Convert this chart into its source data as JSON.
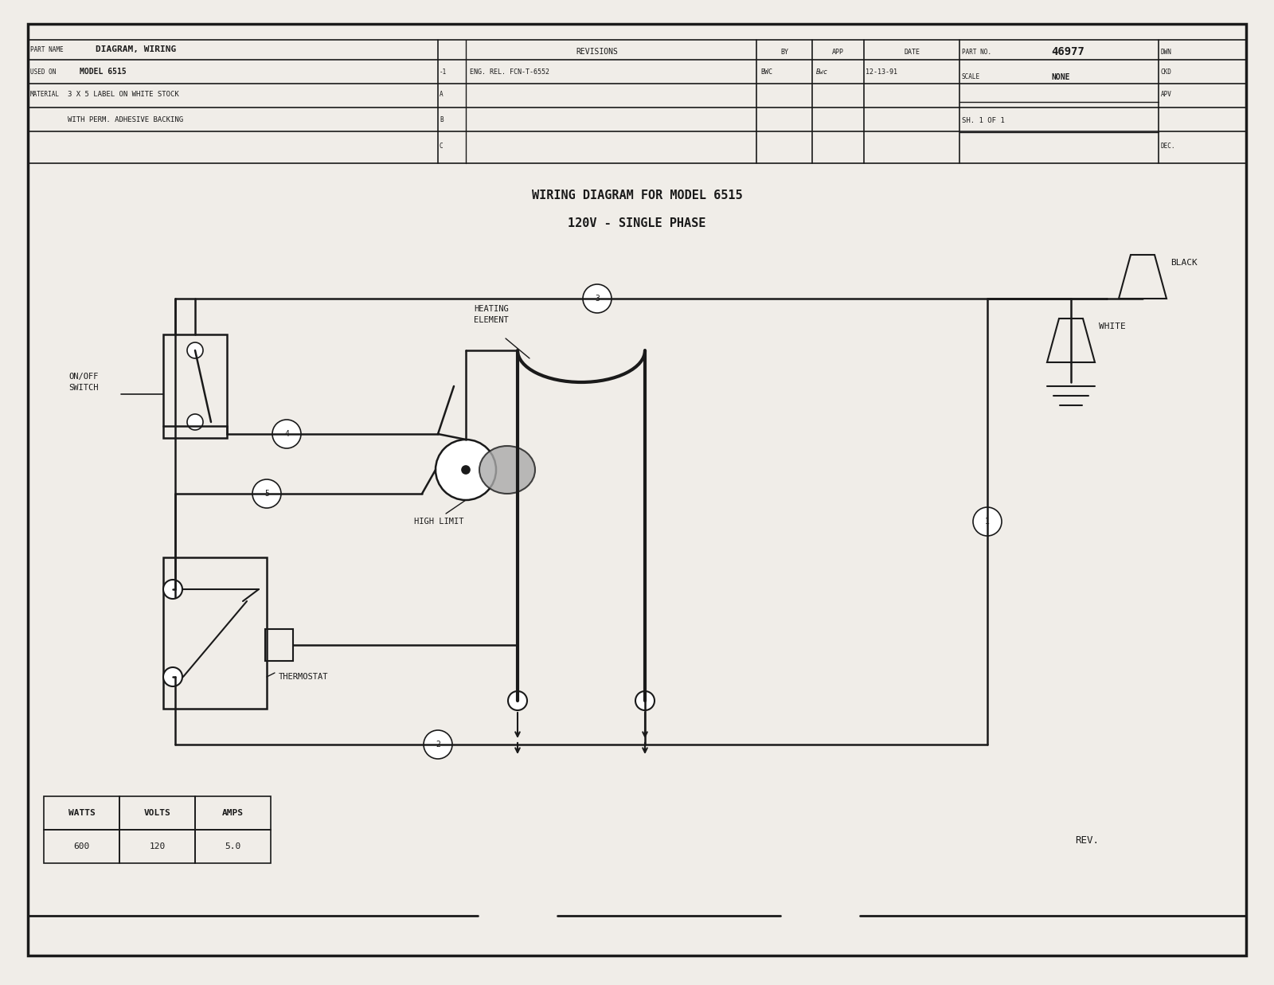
{
  "bg_color": "#f0ede8",
  "line_color": "#1a1a1a",
  "title_line1": "WIRING DIAGRAM FOR MODEL 6515",
  "title_line2": "120V - SINGLE PHASE",
  "header": {
    "part_name_label": "PART NAME",
    "part_name_value": "DIAGRAM, WIRING",
    "used_on_label": "USED ON",
    "used_on_value": "MODEL 6515",
    "material_label": "MATERIAL",
    "material_line1": "3 X 5 LABEL ON WHITE STOCK",
    "material_line2": "WITH PERM. ADHESIVE BACKING",
    "revisions_label": "REVISIONS",
    "rev_rows": [
      "-1",
      "A",
      "B",
      "C"
    ],
    "rev_desc": [
      "ENG. REL. FCN-T-6552",
      "",
      "",
      ""
    ],
    "rev_by": [
      "BWC",
      "",
      "",
      ""
    ],
    "rev_app": [
      "",
      "",
      "",
      ""
    ],
    "rev_date": [
      "12-13-91",
      "",
      "",
      ""
    ],
    "part_no_label": "PART NO.",
    "part_no_value": "46977",
    "scale_label": "SCALE",
    "scale_value": "NONE",
    "sh_value": "SH. 1 OF 1",
    "dwn_label": "DWN",
    "ckd_label": "CKD",
    "apv_label": "APV",
    "dec_label": "DEC."
  },
  "table": {
    "headers": [
      "WATTS",
      "VOLTS",
      "AMPS"
    ],
    "values": [
      "600",
      "120",
      "5.0"
    ]
  },
  "rev_text": "REV."
}
